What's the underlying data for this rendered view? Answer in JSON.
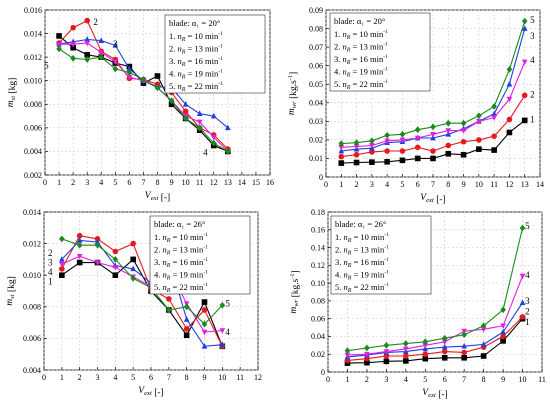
{
  "legend_items": [
    "n_R = 10 min-1",
    "n_R = 13 min-1",
    "n_R = 16 min-1",
    "n_R = 19 min-1",
    "n_R = 22 min-1"
  ],
  "chart_data": [
    {
      "type": "line",
      "panel": "top-left",
      "legend_title": "blade: α₁ = 20°",
      "ylabel": "m_st [kg]",
      "xlabel": "V_ext [-]",
      "xlim": [
        0,
        16
      ],
      "ylim": [
        0.002,
        0.016
      ],
      "xticks": [
        "0",
        "1",
        "2",
        "3",
        "4",
        "5",
        "6",
        "7",
        "8",
        "9",
        "10",
        "11",
        "12",
        "13",
        "14",
        "15",
        "16"
      ],
      "yticks": [
        "0.002",
        "0.004",
        "0.006",
        "0.008",
        "0.010",
        "0.012",
        "0.014",
        "0.016"
      ],
      "grid": true,
      "legend_position": "top-right",
      "series": [
        {
          "name": "1. n_R = 10 min-1",
          "color": "#000000",
          "marker": "square",
          "x": [
            1,
            2,
            3,
            4,
            5,
            6,
            7,
            8,
            9,
            10,
            11,
            12,
            13
          ],
          "y": [
            0.0138,
            0.0128,
            0.0122,
            0.012,
            0.0115,
            0.0112,
            0.0098,
            0.0104,
            0.008,
            0.0068,
            0.0058,
            0.0045,
            0.004
          ]
        },
        {
          "name": "2. n_R = 13 min-1",
          "color": "#e41a1c",
          "marker": "circle",
          "x": [
            1,
            2,
            3,
            4,
            5,
            6,
            7,
            8,
            9,
            10,
            11,
            12,
            13
          ],
          "y": [
            0.0132,
            0.0145,
            0.0151,
            0.0125,
            0.0118,
            0.0102,
            0.0101,
            0.0097,
            0.009,
            0.0074,
            0.006,
            0.0054,
            0.0042
          ]
        },
        {
          "name": "3. n_R = 16 min-1",
          "color": "#1f3fdf",
          "marker": "triangle-up",
          "x": [
            1,
            2,
            3,
            4,
            5,
            6,
            7,
            8,
            9,
            10,
            11,
            12,
            13
          ],
          "y": [
            0.0131,
            0.0133,
            0.0135,
            0.0134,
            0.013,
            0.011,
            0.01,
            0.0095,
            0.0094,
            0.008,
            0.0072,
            0.007,
            0.006
          ]
        },
        {
          "name": "4. n_R = 19 min-1",
          "color": "#e020e0",
          "marker": "triangle-down",
          "x": [
            1,
            2,
            3,
            4,
            5,
            6,
            7,
            8,
            9,
            10,
            11,
            12,
            13
          ],
          "y": [
            0.0131,
            0.0131,
            0.0132,
            0.0124,
            0.0116,
            0.0103,
            0.01,
            0.0094,
            0.0083,
            0.007,
            0.0065,
            0.0052,
            0.004
          ]
        },
        {
          "name": "5. n_R = 22 min-1",
          "color": "#1a8a1a",
          "marker": "diamond",
          "x": [
            1,
            2,
            3,
            4,
            5,
            6,
            7,
            8,
            9,
            10,
            11,
            12,
            13
          ],
          "y": [
            0.0127,
            0.0119,
            0.0118,
            0.012,
            0.011,
            0.0107,
            0.0101,
            0.0094,
            0.0083,
            0.0068,
            0.006,
            0.0047,
            0.004
          ]
        }
      ],
      "curve_labels": [
        {
          "text": "2",
          "x": 3.6,
          "y": 0.015
        },
        {
          "text": "3",
          "x": 5.0,
          "y": 0.0131
        },
        {
          "text": "1",
          "x": 8.7,
          "y": 0.0108
        },
        {
          "text": "5",
          "x": 0.1,
          "y": 0.0113
        },
        {
          "text": "4",
          "x": 11.4,
          "y": 0.0039
        }
      ]
    },
    {
      "type": "line",
      "panel": "top-right",
      "legend_title": "blade: α₁ = 20°",
      "ylabel": "m_wr [kg.s-1]",
      "xlabel": "V_ext [-]",
      "xlim": [
        0,
        14
      ],
      "ylim": [
        0,
        0.09
      ],
      "xticks": [
        "0",
        "1",
        "2",
        "3",
        "4",
        "5",
        "6",
        "7",
        "8",
        "9",
        "10",
        "11",
        "12",
        "13",
        "14"
      ],
      "yticks": [
        "0",
        "0.01",
        "0.02",
        "0.03",
        "0.04",
        "0.05",
        "0.06",
        "0.07",
        "0.08",
        "0.09"
      ],
      "grid": true,
      "legend_position": "top-left",
      "series": [
        {
          "name": "1. n_R = 10 min-1",
          "color": "#000000",
          "marker": "square",
          "x": [
            1,
            2,
            3,
            4,
            5,
            6,
            7,
            8,
            9,
            10,
            11,
            12,
            13
          ],
          "y": [
            0.0075,
            0.0078,
            0.008,
            0.0082,
            0.009,
            0.01,
            0.01,
            0.0125,
            0.012,
            0.015,
            0.0145,
            0.024,
            0.0305
          ]
        },
        {
          "name": "2. n_R = 13 min-1",
          "color": "#e41a1c",
          "marker": "circle",
          "x": [
            1,
            2,
            3,
            4,
            5,
            6,
            7,
            8,
            9,
            10,
            11,
            12,
            13
          ],
          "y": [
            0.011,
            0.012,
            0.0135,
            0.014,
            0.014,
            0.016,
            0.014,
            0.017,
            0.019,
            0.02,
            0.022,
            0.031,
            0.044
          ]
        },
        {
          "name": "3. n_R = 16 min-1",
          "color": "#1f3fdf",
          "marker": "triangle-up",
          "x": [
            1,
            2,
            3,
            4,
            5,
            6,
            7,
            8,
            9,
            10,
            11,
            12,
            13
          ],
          "y": [
            0.014,
            0.015,
            0.0155,
            0.0185,
            0.019,
            0.021,
            0.021,
            0.023,
            0.026,
            0.03,
            0.034,
            0.05,
            0.08
          ]
        },
        {
          "name": "4. n_R = 19 min-1",
          "color": "#e020e0",
          "marker": "triangle-down",
          "x": [
            1,
            2,
            3,
            4,
            5,
            6,
            7,
            8,
            9,
            10,
            11,
            12,
            13
          ],
          "y": [
            0.016,
            0.0165,
            0.017,
            0.0195,
            0.02,
            0.021,
            0.023,
            0.025,
            0.025,
            0.03,
            0.032,
            0.042,
            0.062
          ]
        },
        {
          "name": "5. n_R = 22 min-1",
          "color": "#1a8a1a",
          "marker": "diamond",
          "x": [
            1,
            2,
            3,
            4,
            5,
            6,
            7,
            8,
            9,
            10,
            11,
            12,
            13
          ],
          "y": [
            0.018,
            0.0185,
            0.0195,
            0.0225,
            0.023,
            0.0255,
            0.027,
            0.029,
            0.029,
            0.033,
            0.038,
            0.058,
            0.084
          ]
        }
      ],
      "curve_labels": [
        {
          "text": "5",
          "x": 13.5,
          "y": 0.0845
        },
        {
          "text": "3",
          "x": 13.5,
          "y": 0.076
        },
        {
          "text": "4",
          "x": 13.5,
          "y": 0.063
        },
        {
          "text": "2",
          "x": 13.5,
          "y": 0.0445
        },
        {
          "text": "1",
          "x": 13.5,
          "y": 0.031
        }
      ]
    },
    {
      "type": "line",
      "panel": "bottom-left",
      "legend_title": "blade: α₁ = 26°",
      "ylabel": "m_st [kg]",
      "xlabel": "V_ext [-]",
      "xlim": [
        0,
        12
      ],
      "ylim": [
        0.004,
        0.014
      ],
      "xticks": [
        "0",
        "1",
        "2",
        "3",
        "4",
        "5",
        "6",
        "7",
        "8",
        "9",
        "10",
        "11",
        "12"
      ],
      "yticks": [
        "0.004",
        "0.006",
        "0.008",
        "0.010",
        "0.012",
        "0.014"
      ],
      "grid": true,
      "legend_position": "top-right",
      "series": [
        {
          "name": "1. n_R = 10 min-1",
          "color": "#000000",
          "marker": "square",
          "x": [
            1,
            2,
            3,
            4,
            5,
            6,
            7,
            8,
            9,
            10
          ],
          "y": [
            0.01,
            0.0108,
            0.0108,
            0.01,
            0.011,
            0.009,
            0.0078,
            0.0062,
            0.0083,
            0.0055
          ]
        },
        {
          "name": "2. n_R = 13 min-1",
          "color": "#e41a1c",
          "marker": "circle",
          "x": [
            1,
            2,
            3,
            4,
            5,
            6,
            7,
            8,
            9,
            10
          ],
          "y": [
            0.0104,
            0.0125,
            0.0123,
            0.0115,
            0.012,
            0.0091,
            0.0085,
            0.0066,
            0.0078,
            0.0055
          ]
        },
        {
          "name": "3. n_R = 16 min-1",
          "color": "#1f3fdf",
          "marker": "triangle-up",
          "x": [
            1,
            2,
            3,
            4,
            5,
            6,
            7,
            8,
            9,
            10
          ],
          "y": [
            0.011,
            0.0122,
            0.0121,
            0.0106,
            0.0104,
            0.0095,
            0.0111,
            0.0072,
            0.0055,
            0.0056
          ]
        },
        {
          "name": "4. n_R = 19 min-1",
          "color": "#e020e0",
          "marker": "triangle-down",
          "x": [
            1,
            2,
            3,
            4,
            5,
            6,
            7,
            8,
            9,
            10
          ],
          "y": [
            0.0107,
            0.0112,
            0.0108,
            0.0105,
            0.0099,
            0.0093,
            0.0104,
            0.0082,
            0.0064,
            0.0065
          ]
        },
        {
          "name": "5. n_R = 22 min-1",
          "color": "#1a8a1a",
          "marker": "diamond",
          "x": [
            1,
            2,
            3,
            4,
            5,
            6,
            7,
            8,
            9,
            10
          ],
          "y": [
            0.0123,
            0.0119,
            0.0119,
            0.011,
            0.0098,
            0.0092,
            0.0078,
            0.008,
            0.0069,
            0.0081
          ]
        }
      ],
      "curve_labels": [
        {
          "text": "2",
          "x": 0.35,
          "y": 0.0114
        },
        {
          "text": "3",
          "x": 0.35,
          "y": 0.0108
        },
        {
          "text": "4",
          "x": 0.35,
          "y": 0.0102
        },
        {
          "text": "1",
          "x": 0.35,
          "y": 0.0096
        },
        {
          "text": "5",
          "x": 10.3,
          "y": 0.0082
        },
        {
          "text": "4",
          "x": 10.3,
          "y": 0.0064
        }
      ]
    },
    {
      "type": "line",
      "panel": "bottom-right",
      "legend_title": "blade: α₁ = 26°",
      "ylabel": "m_wr [kg.s-1]",
      "xlabel": "V_ext [-]",
      "xlim": [
        0,
        11
      ],
      "ylim": [
        0,
        0.18
      ],
      "xticks": [
        "0",
        "1",
        "2",
        "3",
        "4",
        "5",
        "6",
        "7",
        "8",
        "9",
        "10",
        "11"
      ],
      "yticks": [
        "0",
        "0.02",
        "0.04",
        "0.06",
        "0.08",
        "0.10",
        "0.12",
        "0.14",
        "0.16",
        "0.18"
      ],
      "grid": true,
      "legend_position": "top-left",
      "series": [
        {
          "name": "1. n_R = 10 min-1",
          "color": "#000000",
          "marker": "square",
          "x": [
            1,
            2,
            3,
            4,
            5,
            6,
            7,
            8,
            9,
            10
          ],
          "y": [
            0.01,
            0.0105,
            0.012,
            0.0125,
            0.015,
            0.016,
            0.016,
            0.018,
            0.035,
            0.06
          ]
        },
        {
          "name": "2. n_R = 13 min-1",
          "color": "#e41a1c",
          "marker": "circle",
          "x": [
            1,
            2,
            3,
            4,
            5,
            6,
            7,
            8,
            9,
            10
          ],
          "y": [
            0.013,
            0.015,
            0.018,
            0.018,
            0.02,
            0.023,
            0.022,
            0.028,
            0.04,
            0.062
          ]
        },
        {
          "name": "3. n_R = 16 min-1",
          "color": "#1f3fdf",
          "marker": "triangle-up",
          "x": [
            1,
            2,
            3,
            4,
            5,
            6,
            7,
            8,
            9,
            10
          ],
          "y": [
            0.017,
            0.019,
            0.022,
            0.023,
            0.026,
            0.028,
            0.029,
            0.031,
            0.045,
            0.078
          ]
        },
        {
          "name": "4. n_R = 19 min-1",
          "color": "#e020e0",
          "marker": "triangle-down",
          "x": [
            1,
            2,
            3,
            4,
            5,
            6,
            7,
            8,
            9,
            10
          ],
          "y": [
            0.019,
            0.02,
            0.023,
            0.026,
            0.03,
            0.034,
            0.046,
            0.048,
            0.052,
            0.108
          ]
        },
        {
          "name": "5. n_R = 22 min-1",
          "color": "#1a8a1a",
          "marker": "diamond",
          "x": [
            1,
            2,
            3,
            4,
            5,
            6,
            7,
            8,
            9,
            10
          ],
          "y": [
            0.024,
            0.027,
            0.03,
            0.032,
            0.034,
            0.038,
            0.042,
            0.052,
            0.07,
            0.162
          ]
        }
      ],
      "curve_labels": [
        {
          "text": "5",
          "x": 10.25,
          "y": 0.164
        },
        {
          "text": "4",
          "x": 10.25,
          "y": 0.109
        },
        {
          "text": "3",
          "x": 10.25,
          "y": 0.08
        },
        {
          "text": "2",
          "x": 10.25,
          "y": 0.068
        },
        {
          "text": "1",
          "x": 10.25,
          "y": 0.056
        }
      ]
    }
  ]
}
